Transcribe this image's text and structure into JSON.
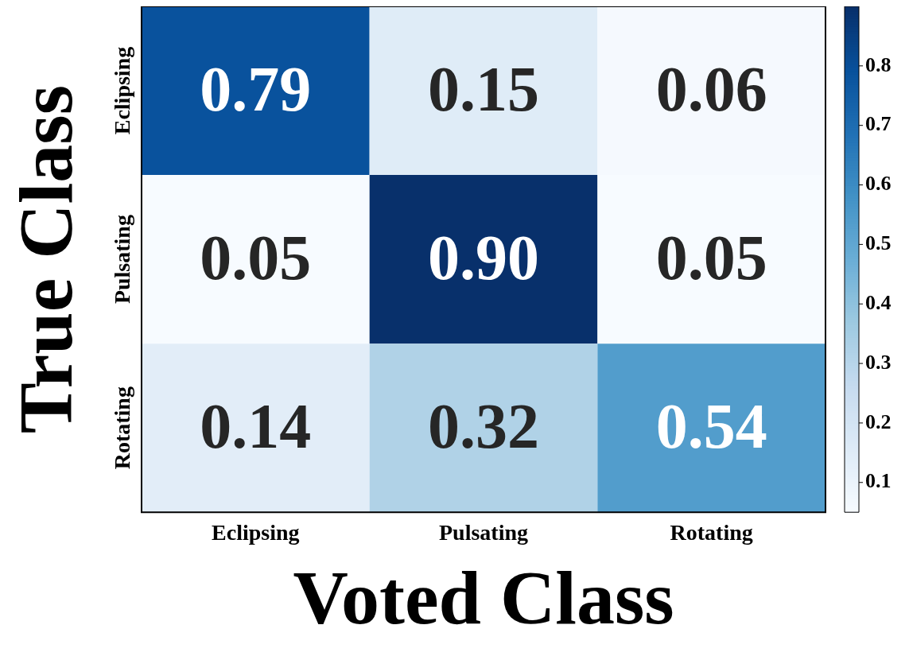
{
  "chart_data": {
    "type": "heatmap",
    "xlabel": "Voted Class",
    "ylabel": "True Class",
    "categories": [
      "Eclipsing",
      "Pulsating",
      "Rotating"
    ],
    "y_categories": [
      "Eclipsing",
      "Pulsating",
      "Rotating"
    ],
    "cells": [
      [
        0.79,
        0.15,
        0.06
      ],
      [
        0.05,
        0.9,
        0.05
      ],
      [
        0.14,
        0.32,
        0.54
      ]
    ],
    "cell_labels": [
      [
        "0.79",
        "0.15",
        "0.06"
      ],
      [
        "0.05",
        "0.90",
        "0.05"
      ],
      [
        "0.14",
        "0.32",
        "0.54"
      ]
    ],
    "clim": [
      0.05,
      0.9
    ],
    "cticks": [
      0.1,
      0.2,
      0.3,
      0.4,
      0.5,
      0.6,
      0.7,
      0.8
    ]
  }
}
